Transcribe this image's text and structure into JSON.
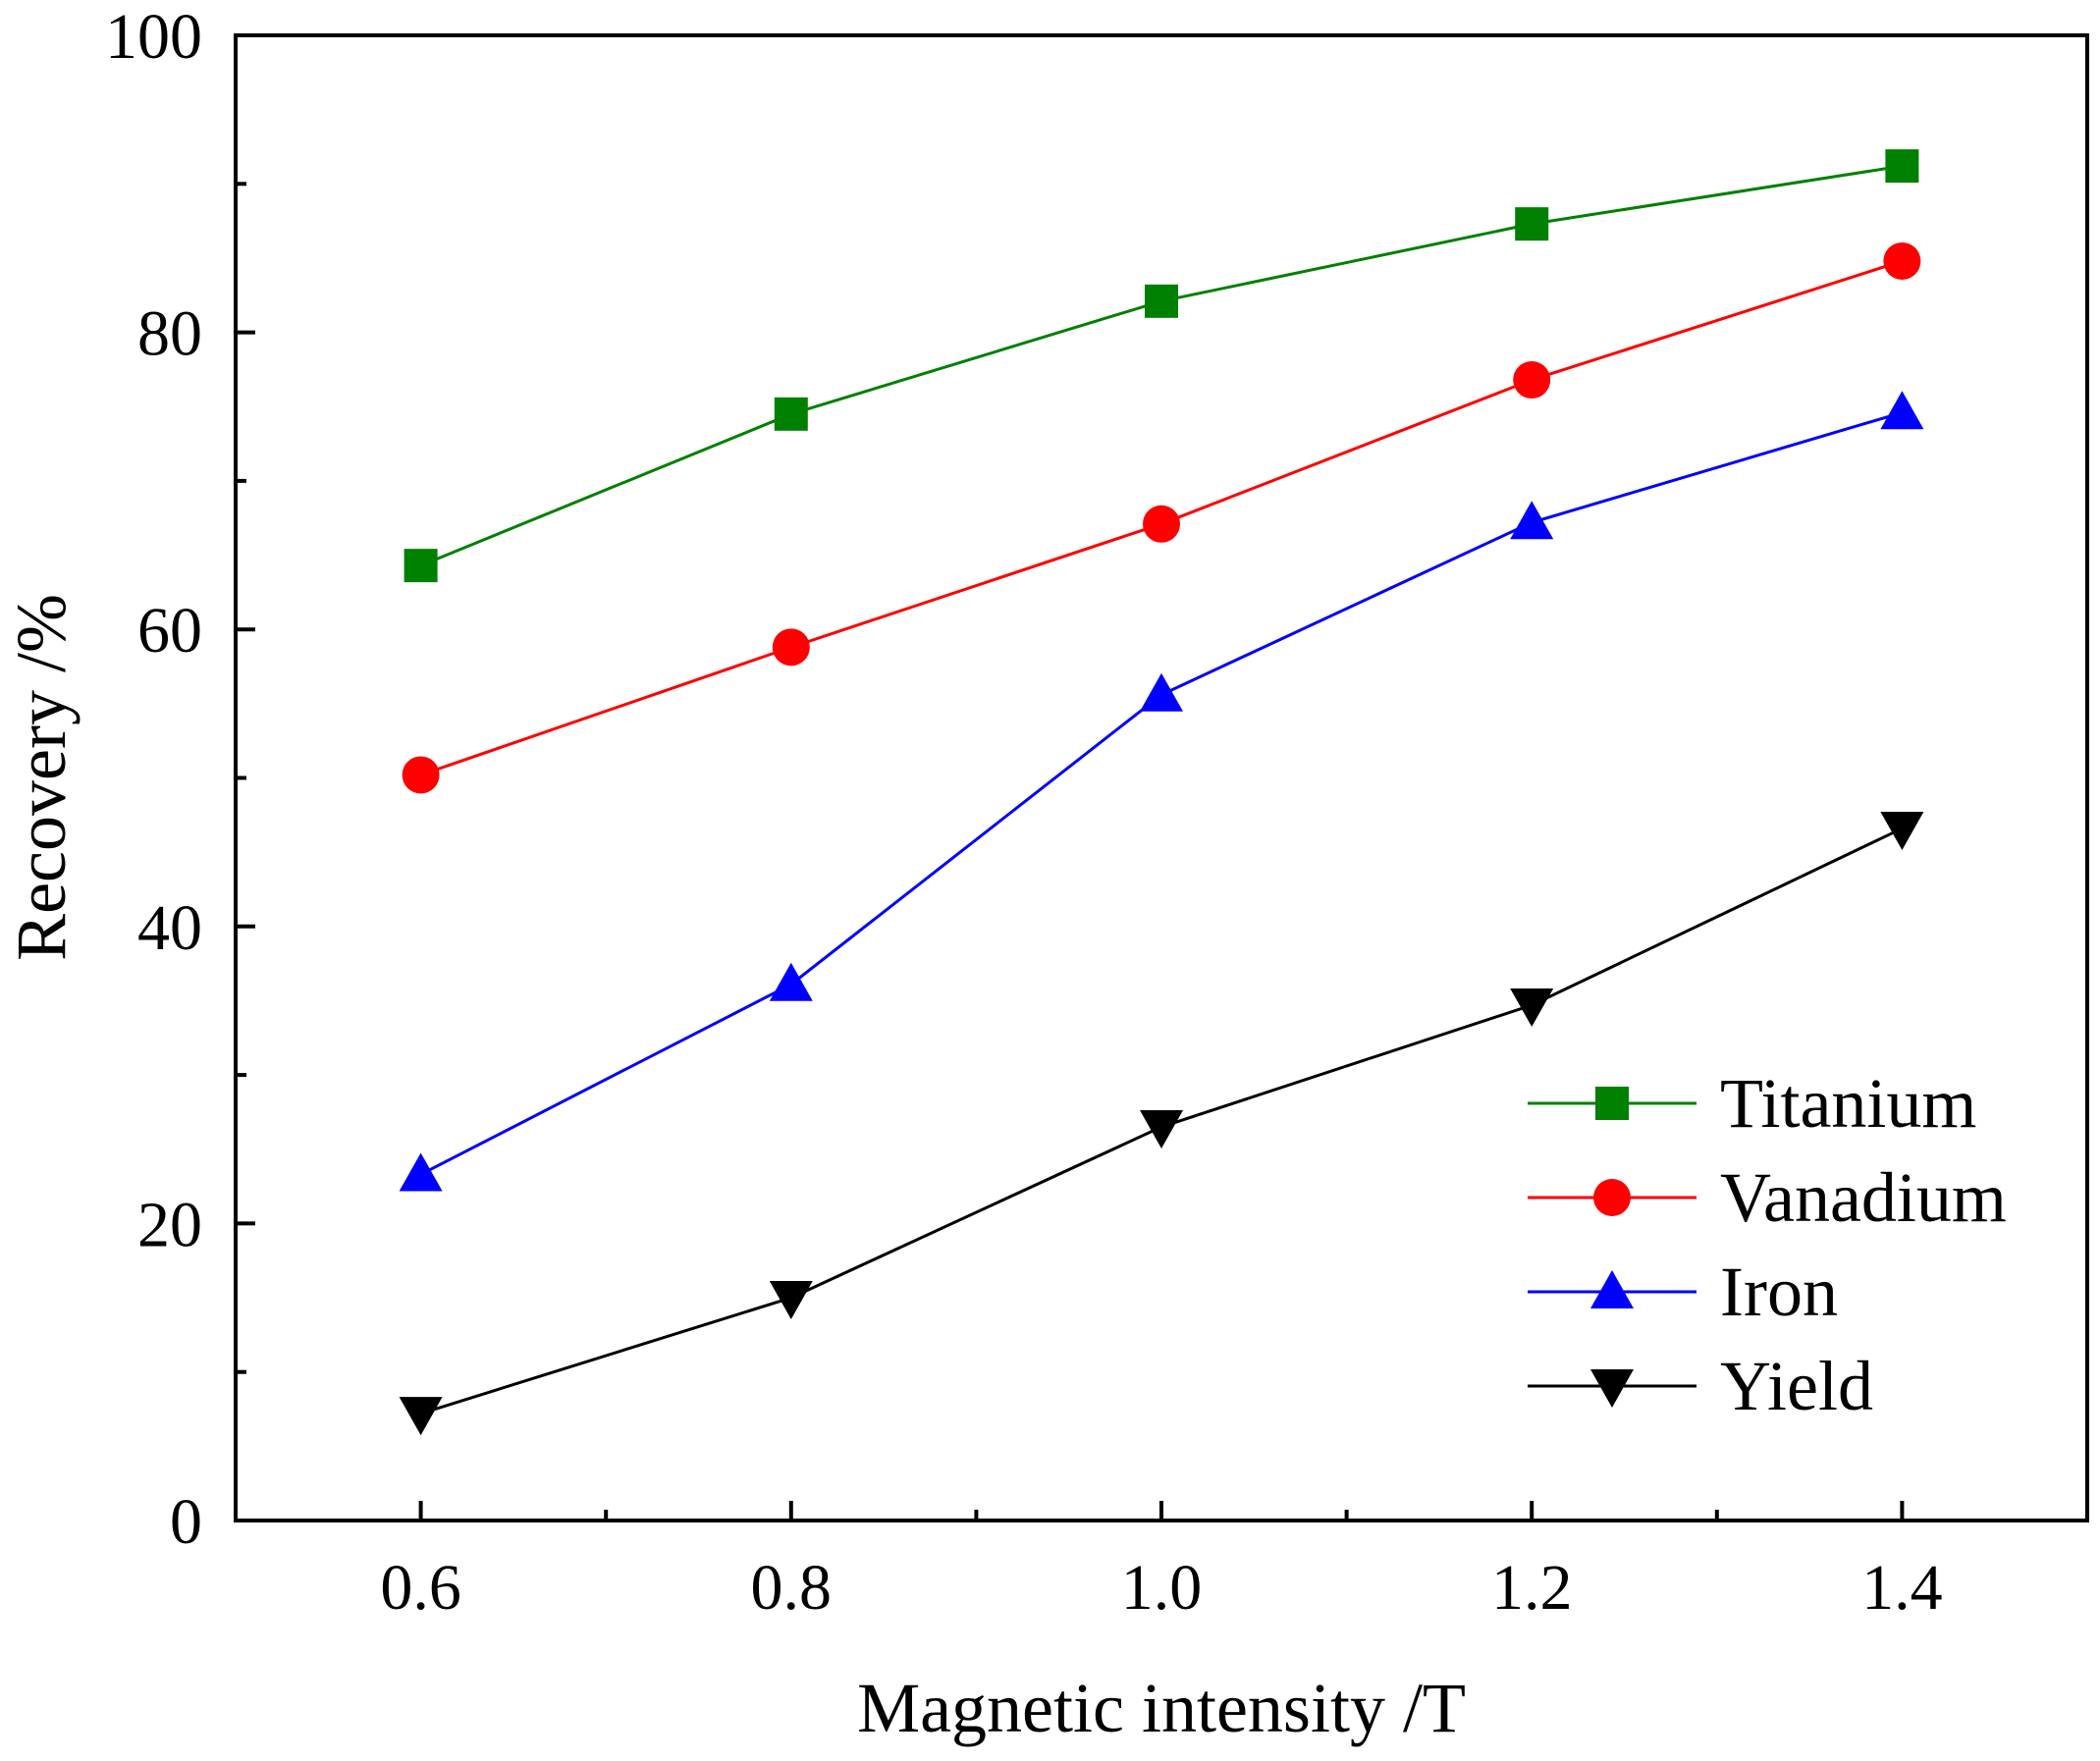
{
  "chart_data": {
    "type": "line",
    "title": "",
    "xlabel": "Magnetic intensity /T",
    "ylabel": "Recovery /%",
    "x": [
      0.6,
      0.8,
      1.0,
      1.2,
      1.4
    ],
    "xlim": [
      0.5,
      1.5
    ],
    "ylim": [
      0,
      100
    ],
    "xticks": [
      0.6,
      0.8,
      1.0,
      1.2,
      1.4
    ],
    "xtick_labels": [
      "0.6",
      "0.8",
      "1.0",
      "1.2",
      "1.4"
    ],
    "xminor_ticks": [
      0.7,
      0.9,
      1.1,
      1.3
    ],
    "yticks": [
      0,
      20,
      40,
      60,
      80,
      100
    ],
    "ytick_labels": [
      "0",
      "20",
      "40",
      "60",
      "80",
      "100"
    ],
    "yminor_ticks": [
      10,
      30,
      50,
      70,
      90
    ],
    "grid": false,
    "legend_position": "bottom-right",
    "series": [
      {
        "name": "Titanium",
        "values": [
          64.3,
          74.5,
          82.1,
          87.3,
          91.2
        ],
        "color": "#008000",
        "marker": "square"
      },
      {
        "name": "Vanadium",
        "values": [
          50.2,
          58.8,
          67.1,
          76.8,
          84.8
        ],
        "color": "#ff0000",
        "marker": "circle"
      },
      {
        "name": "Iron",
        "values": [
          23.3,
          36.1,
          55.6,
          67.2,
          74.6
        ],
        "color": "#0000ff",
        "marker": "triangle-up"
      },
      {
        "name": "Yield",
        "values": [
          7.2,
          15.0,
          26.5,
          34.7,
          46.6
        ],
        "color": "#000000",
        "marker": "triangle-down"
      }
    ]
  }
}
